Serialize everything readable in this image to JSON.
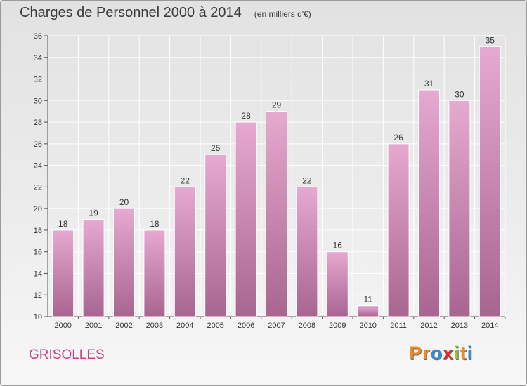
{
  "header": {
    "title": "Charges de Personnel 2000 à 2014",
    "subtitle": "(en milliers d'€)"
  },
  "footer": {
    "town": "GRISOLLES",
    "logo_letters": [
      "P",
      "r",
      "o",
      "x",
      "i",
      "t",
      "i"
    ]
  },
  "colors": {
    "bar_top": "#e6a9d0",
    "bar_bottom": "#a86590",
    "town_text": "#c9418a",
    "logo": [
      "#f08a22",
      "#f08a22",
      "#2f8fd6",
      "#d8322f",
      "#8cc63f",
      "#f08a22",
      "#2f8fd6"
    ]
  },
  "chart_data": {
    "type": "bar",
    "title": "Charges de Personnel 2000 à 2014",
    "subtitle": "(en milliers d'€)",
    "categories": [
      "2000",
      "2001",
      "2002",
      "2003",
      "2004",
      "2005",
      "2006",
      "2007",
      "2008",
      "2009",
      "2010",
      "2011",
      "2012",
      "2013",
      "2014"
    ],
    "values": [
      18,
      19,
      20,
      18,
      22,
      25,
      28,
      29,
      22,
      16,
      11,
      26,
      31,
      30,
      35
    ],
    "ylim": [
      10,
      36
    ],
    "yticks": [
      10,
      12,
      14,
      16,
      18,
      20,
      22,
      24,
      26,
      28,
      30,
      32,
      34,
      36
    ],
    "grid": true,
    "legend": "none"
  }
}
